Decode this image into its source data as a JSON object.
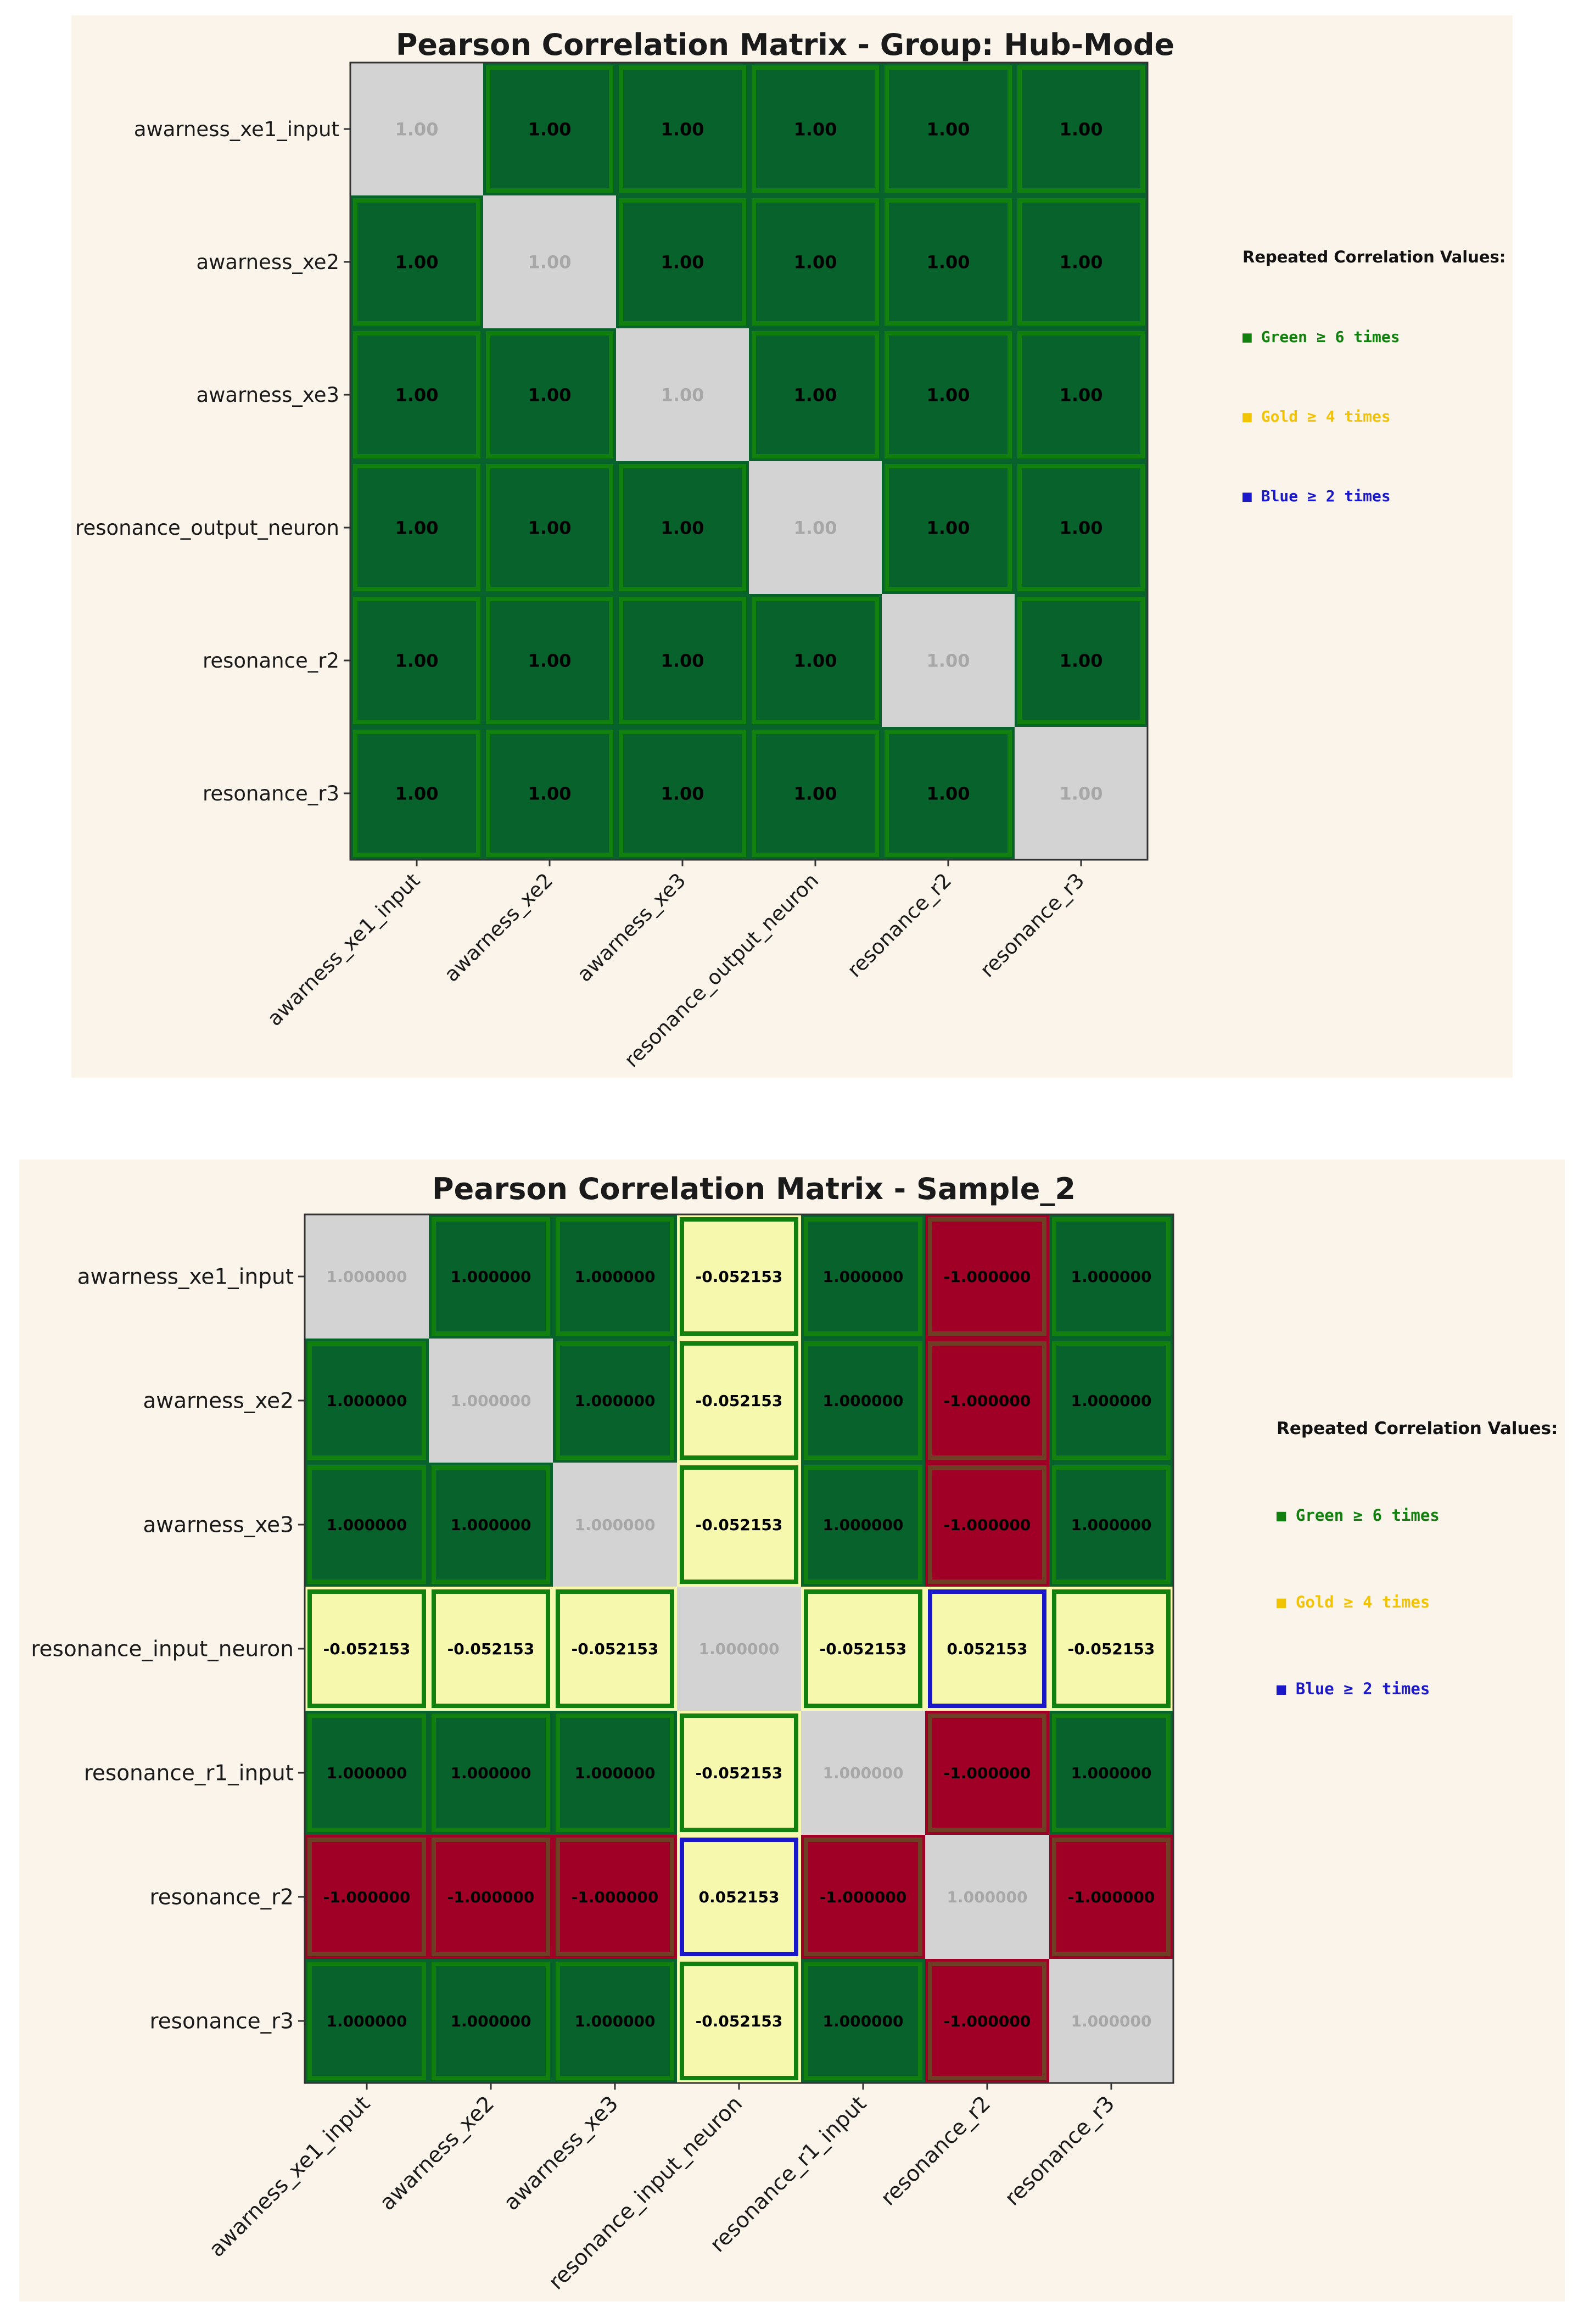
{
  "colors": {
    "panel_bg": "#fbf4ea",
    "diagonal": "#d3d3d3",
    "positive_one": "#07622c",
    "negative_one": "#a00025",
    "small_value": "#f6f8ad",
    "green_border": "#11800f",
    "gold": "#f2c300",
    "blue": "#1a18c8",
    "red_border": "#6e3e25"
  },
  "chart_data": [
    {
      "type": "heatmap",
      "title": "Pearson Correlation Matrix - Group: Hub-Mode",
      "labels": [
        "awarness_xe1_input",
        "awarness_xe2",
        "awarness_xe3",
        "resonance_output_neuron",
        "resonance_r2",
        "resonance_r3"
      ],
      "values": [
        [
          1.0,
          1.0,
          1.0,
          1.0,
          1.0,
          1.0
        ],
        [
          1.0,
          1.0,
          1.0,
          1.0,
          1.0,
          1.0
        ],
        [
          1.0,
          1.0,
          1.0,
          1.0,
          1.0,
          1.0
        ],
        [
          1.0,
          1.0,
          1.0,
          1.0,
          1.0,
          1.0
        ],
        [
          1.0,
          1.0,
          1.0,
          1.0,
          1.0,
          1.0
        ],
        [
          1.0,
          1.0,
          1.0,
          1.0,
          1.0,
          1.0
        ]
      ],
      "display": [
        [
          "1.00",
          "1.00",
          "1.00",
          "1.00",
          "1.00",
          "1.00"
        ],
        [
          "1.00",
          "1.00",
          "1.00",
          "1.00",
          "1.00",
          "1.00"
        ],
        [
          "1.00",
          "1.00",
          "1.00",
          "1.00",
          "1.00",
          "1.00"
        ],
        [
          "1.00",
          "1.00",
          "1.00",
          "1.00",
          "1.00",
          "1.00"
        ],
        [
          "1.00",
          "1.00",
          "1.00",
          "1.00",
          "1.00",
          "1.00"
        ],
        [
          "1.00",
          "1.00",
          "1.00",
          "1.00",
          "1.00",
          "1.00"
        ]
      ],
      "legend": {
        "title": "Repeated Correlation Values:",
        "placement": "right",
        "items": [
          {
            "text": "■ Green ≥ 6 times",
            "color": "#11800f"
          },
          {
            "text": "■ Gold  ≥ 4 times",
            "color": "#f2c300"
          },
          {
            "text": "■ Blue  ≥ 2 times",
            "color": "#1a18c8"
          }
        ]
      }
    },
    {
      "type": "heatmap",
      "title": "Pearson Correlation Matrix - Sample_2",
      "labels": [
        "awarness_xe1_input",
        "awarness_xe2",
        "awarness_xe3",
        "resonance_input_neuron",
        "resonance_r1_input",
        "resonance_r2",
        "resonance_r3"
      ],
      "values": [
        [
          1.0,
          1.0,
          1.0,
          -0.052153,
          1.0,
          -1.0,
          1.0
        ],
        [
          1.0,
          1.0,
          1.0,
          -0.052153,
          1.0,
          -1.0,
          1.0
        ],
        [
          1.0,
          1.0,
          1.0,
          -0.052153,
          1.0,
          -1.0,
          1.0
        ],
        [
          -0.052153,
          -0.052153,
          -0.052153,
          1.0,
          -0.052153,
          0.052153,
          -0.052153
        ],
        [
          1.0,
          1.0,
          1.0,
          -0.052153,
          1.0,
          -1.0,
          1.0
        ],
        [
          -1.0,
          -1.0,
          -1.0,
          0.052153,
          -1.0,
          1.0,
          -1.0
        ],
        [
          1.0,
          1.0,
          1.0,
          -0.052153,
          1.0,
          -1.0,
          1.0
        ]
      ],
      "display": [
        [
          "1.000000",
          "1.000000",
          "1.000000",
          "-0.052153",
          "1.000000",
          "-1.000000",
          "1.000000"
        ],
        [
          "1.000000",
          "1.000000",
          "1.000000",
          "-0.052153",
          "1.000000",
          "-1.000000",
          "1.000000"
        ],
        [
          "1.000000",
          "1.000000",
          "1.000000",
          "-0.052153",
          "1.000000",
          "-1.000000",
          "1.000000"
        ],
        [
          "-0.052153",
          "-0.052153",
          "-0.052153",
          "1.000000",
          "-0.052153",
          "0.052153",
          "-0.052153"
        ],
        [
          "1.000000",
          "1.000000",
          "1.000000",
          "-0.052153",
          "1.000000",
          "-1.000000",
          "1.000000"
        ],
        [
          "-1.000000",
          "-1.000000",
          "-1.000000",
          "0.052153",
          "-1.000000",
          "1.000000",
          "-1.000000"
        ],
        [
          "1.000000",
          "1.000000",
          "1.000000",
          "-0.052153",
          "1.000000",
          "-1.000000",
          "1.000000"
        ]
      ],
      "legend": {
        "title": "Repeated Correlation Values:",
        "placement": "right",
        "items": [
          {
            "text": "■ Green ≥ 6 times",
            "color": "#11800f"
          },
          {
            "text": "■ Gold  ≥ 4 times",
            "color": "#f2c300"
          },
          {
            "text": "■ Blue  ≥ 2 times",
            "color": "#1a18c8"
          }
        ]
      }
    }
  ]
}
